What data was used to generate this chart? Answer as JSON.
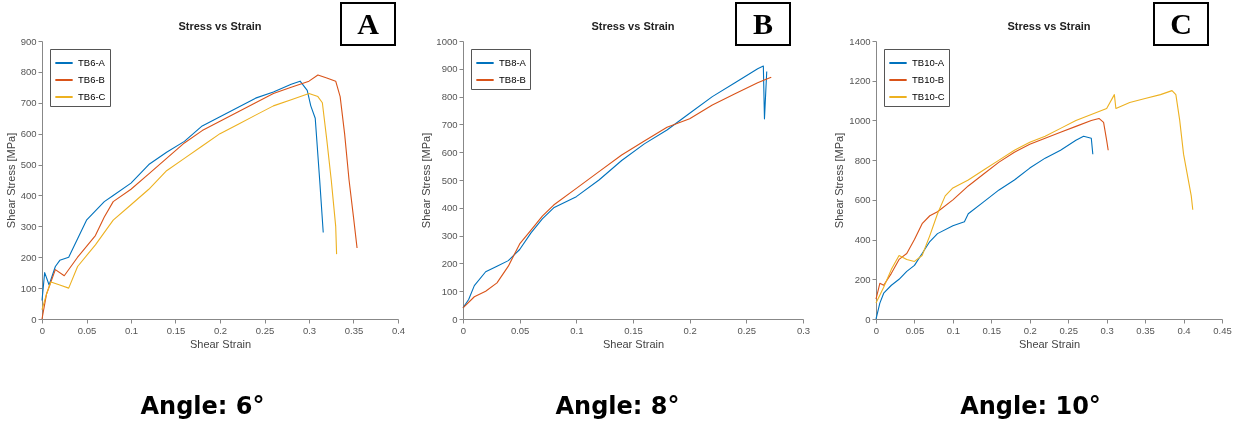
{
  "chart_data": [
    {
      "type": "line",
      "title": "Stress vs Strain",
      "xlabel": "Shear Strain",
      "ylabel": "Shear Stress [MPa]",
      "annotations": [
        "A",
        "Angle: 6°"
      ],
      "legend": "top left",
      "grid": false,
      "xlim": [
        0,
        0.4
      ],
      "ylim": [
        0,
        900
      ],
      "xticks": [
        0,
        0.05,
        0.1,
        0.15,
        0.2,
        0.25,
        0.3,
        0.35,
        0.4
      ],
      "yticks": [
        0,
        100,
        200,
        300,
        400,
        500,
        600,
        700,
        800,
        900
      ],
      "series": [
        {
          "name": "TB6-A",
          "color": "#0072bd",
          "x": [
            0,
            0.003,
            0.008,
            0.015,
            0.02,
            0.03,
            0.04,
            0.05,
            0.06,
            0.07,
            0.08,
            0.1,
            0.12,
            0.14,
            0.16,
            0.18,
            0.2,
            0.22,
            0.24,
            0.26,
            0.28,
            0.29,
            0.298,
            0.302,
            0.307,
            0.312,
            0.316
          ],
          "values": [
            60,
            150,
            110,
            170,
            190,
            200,
            260,
            320,
            350,
            380,
            400,
            440,
            500,
            540,
            575,
            625,
            655,
            685,
            715,
            735,
            760,
            770,
            740,
            690,
            650,
            450,
            280
          ]
        },
        {
          "name": "TB6-B",
          "color": "#d95319",
          "x": [
            0,
            0.005,
            0.015,
            0.025,
            0.04,
            0.06,
            0.07,
            0.08,
            0.1,
            0.12,
            0.14,
            0.16,
            0.18,
            0.2,
            0.22,
            0.24,
            0.26,
            0.28,
            0.3,
            0.31,
            0.32,
            0.33,
            0.335,
            0.34,
            0.345,
            0.35,
            0.354
          ],
          "values": [
            0,
            80,
            160,
            140,
            200,
            270,
            330,
            380,
            420,
            470,
            520,
            570,
            610,
            640,
            670,
            700,
            730,
            750,
            770,
            790,
            780,
            770,
            720,
            600,
            450,
            330,
            230
          ]
        },
        {
          "name": "TB6-C",
          "color": "#edb120",
          "x": [
            0,
            0.005,
            0.01,
            0.02,
            0.03,
            0.04,
            0.06,
            0.08,
            0.1,
            0.12,
            0.14,
            0.16,
            0.18,
            0.2,
            0.22,
            0.24,
            0.26,
            0.28,
            0.3,
            0.31,
            0.315,
            0.32,
            0.325,
            0.33,
            0.331
          ],
          "values": [
            30,
            80,
            120,
            110,
            100,
            170,
            240,
            320,
            370,
            420,
            480,
            520,
            560,
            600,
            630,
            660,
            690,
            710,
            730,
            720,
            700,
            580,
            450,
            300,
            210
          ]
        }
      ]
    },
    {
      "type": "line",
      "title": "Stress vs Strain",
      "xlabel": "Shear Strain",
      "ylabel": "Shear Stress [MPa]",
      "annotations": [
        "B",
        "Angle: 8°"
      ],
      "legend": "top left",
      "grid": false,
      "xlim": [
        0,
        0.3
      ],
      "ylim": [
        0,
        1000
      ],
      "xticks": [
        0,
        0.05,
        0.1,
        0.15,
        0.2,
        0.25,
        0.3
      ],
      "yticks": [
        0,
        100,
        200,
        300,
        400,
        500,
        600,
        700,
        800,
        900,
        1000
      ],
      "series": [
        {
          "name": "TB8-A",
          "color": "#0072bd",
          "x": [
            0,
            0.005,
            0.01,
            0.02,
            0.03,
            0.04,
            0.05,
            0.06,
            0.07,
            0.08,
            0.1,
            0.12,
            0.14,
            0.16,
            0.18,
            0.2,
            0.22,
            0.24,
            0.26,
            0.265,
            0.266,
            0.268
          ],
          "values": [
            40,
            70,
            120,
            170,
            190,
            210,
            250,
            310,
            360,
            400,
            440,
            500,
            570,
            630,
            680,
            740,
            800,
            850,
            900,
            910,
            720,
            890
          ]
        },
        {
          "name": "TB8-B",
          "color": "#d95319",
          "x": [
            0,
            0.01,
            0.02,
            0.03,
            0.04,
            0.05,
            0.06,
            0.07,
            0.08,
            0.1,
            0.12,
            0.14,
            0.16,
            0.18,
            0.2,
            0.22,
            0.24,
            0.26,
            0.272
          ],
          "values": [
            40,
            80,
            100,
            130,
            190,
            270,
            320,
            370,
            410,
            470,
            530,
            590,
            640,
            690,
            720,
            770,
            810,
            850,
            870
          ]
        }
      ]
    },
    {
      "type": "line",
      "title": "Stress vs Strain",
      "xlabel": "Shear Strain",
      "ylabel": "Shear Stress [MPa]",
      "annotations": [
        "C",
        "Angle: 10°"
      ],
      "legend": "top left",
      "grid": false,
      "xlim": [
        0,
        0.45
      ],
      "ylim": [
        0,
        1400
      ],
      "xticks": [
        0,
        0.05,
        0.1,
        0.15,
        0.2,
        0.25,
        0.3,
        0.35,
        0.4,
        0.45
      ],
      "yticks": [
        0,
        200,
        400,
        600,
        800,
        1000,
        1200,
        1400
      ],
      "series": [
        {
          "name": "TB10-A",
          "color": "#0072bd",
          "x": [
            0,
            0.005,
            0.01,
            0.02,
            0.03,
            0.04,
            0.05,
            0.06,
            0.07,
            0.08,
            0.1,
            0.115,
            0.12,
            0.14,
            0.16,
            0.18,
            0.2,
            0.22,
            0.24,
            0.26,
            0.27,
            0.28,
            0.282
          ],
          "values": [
            0,
            80,
            130,
            170,
            200,
            240,
            270,
            330,
            390,
            430,
            470,
            490,
            530,
            590,
            650,
            700,
            760,
            810,
            850,
            900,
            920,
            910,
            830
          ]
        },
        {
          "name": "TB10-B",
          "color": "#d95319",
          "x": [
            0,
            0.005,
            0.01,
            0.02,
            0.03,
            0.04,
            0.05,
            0.06,
            0.07,
            0.08,
            0.1,
            0.12,
            0.14,
            0.16,
            0.18,
            0.2,
            0.22,
            0.24,
            0.26,
            0.28,
            0.29,
            0.296,
            0.3,
            0.302
          ],
          "values": [
            100,
            180,
            170,
            230,
            300,
            330,
            400,
            480,
            520,
            540,
            600,
            670,
            730,
            790,
            840,
            880,
            910,
            940,
            970,
            1000,
            1010,
            990,
            900,
            850
          ]
        },
        {
          "name": "TB10-C",
          "color": "#edb120",
          "x": [
            0,
            0.01,
            0.02,
            0.03,
            0.04,
            0.05,
            0.06,
            0.07,
            0.08,
            0.09,
            0.1,
            0.12,
            0.14,
            0.16,
            0.18,
            0.2,
            0.22,
            0.24,
            0.26,
            0.28,
            0.3,
            0.31,
            0.312,
            0.33,
            0.35,
            0.37,
            0.385,
            0.39,
            0.395,
            0.4,
            0.41,
            0.412
          ],
          "values": [
            80,
            160,
            250,
            320,
            300,
            290,
            320,
            420,
            530,
            620,
            660,
            700,
            750,
            800,
            850,
            890,
            920,
            960,
            1000,
            1030,
            1060,
            1130,
            1060,
            1090,
            1110,
            1130,
            1150,
            1130,
            1000,
            830,
            620,
            550
          ]
        }
      ]
    }
  ]
}
